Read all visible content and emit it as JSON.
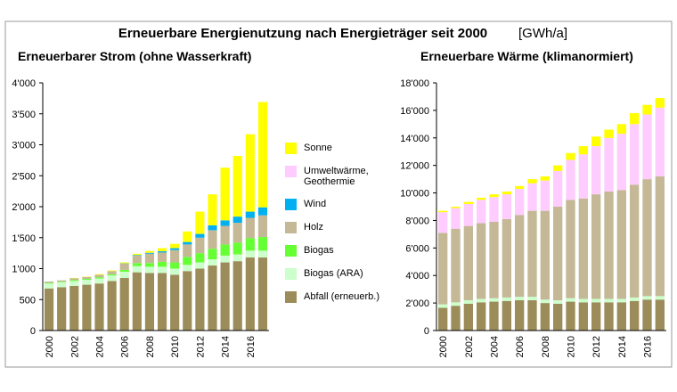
{
  "header": {
    "title": "Erneuerbare Energienutzung nach Energieträger seit 2000",
    "unit": "[GWh/a]"
  },
  "chart_data": [
    {
      "type": "stacked-bar",
      "title": "Erneuerbarer Strom (ohne Wasserkraft)",
      "categories": [
        "2000",
        null,
        "2002",
        null,
        "2004",
        null,
        "2006",
        null,
        "2008",
        null,
        "2010",
        null,
        "2012",
        null,
        "2014",
        null,
        "2016",
        null
      ],
      "ylim": [
        0,
        4000
      ],
      "yticks": [
        0,
        500,
        {
          "value": 1000,
          "label": "1'000"
        },
        {
          "value": 1500,
          "label": "1'500"
        },
        {
          "value": 2000,
          "label": "2'000"
        },
        {
          "value": 2500,
          "label": "2'500"
        },
        {
          "value": 3000,
          "label": "3'000"
        },
        {
          "value": 3500,
          "label": "3'500"
        },
        {
          "value": 4000,
          "label": "4'000"
        }
      ],
      "grid": false,
      "series": [
        {
          "name": "Abfall (erneuerb.)",
          "color": "#9c8c5a",
          "values": [
            680,
            700,
            720,
            740,
            760,
            800,
            850,
            940,
            930,
            930,
            900,
            960,
            1000,
            1050,
            1100,
            1120,
            1180,
            1180
          ]
        },
        {
          "name": "Biogas (ARA)",
          "color": "#ccffcc",
          "values": [
            80,
            80,
            80,
            80,
            80,
            90,
            100,
            100,
            100,
            100,
            100,
            100,
            100,
            100,
            110,
            110,
            110,
            110
          ]
        },
        {
          "name": "Biogas",
          "color": "#66ff33",
          "values": [
            10,
            10,
            15,
            15,
            20,
            20,
            30,
            50,
            60,
            80,
            100,
            130,
            150,
            170,
            180,
            190,
            200,
            220
          ]
        },
        {
          "name": "Holz",
          "color": "#c4b896",
          "values": [
            20,
            20,
            30,
            30,
            40,
            50,
            100,
            120,
            150,
            150,
            200,
            200,
            250,
            300,
            300,
            320,
            330,
            350
          ]
        },
        {
          "name": "Wind",
          "color": "#00b0f0",
          "values": [
            0,
            0,
            0,
            0,
            0,
            0,
            5,
            10,
            15,
            20,
            30,
            40,
            60,
            80,
            90,
            100,
            100,
            130
          ]
        },
        {
          "name": "Sonne",
          "color": "#ffff00",
          "values": [
            0,
            0,
            5,
            5,
            10,
            10,
            15,
            20,
            30,
            50,
            70,
            170,
            360,
            500,
            850,
            980,
            1250,
            1700
          ]
        }
      ]
    },
    {
      "type": "stacked-bar",
      "title": "Erneuerbare Wärme (klimanormiert)",
      "categories": [
        "2000",
        null,
        "2002",
        null,
        "2004",
        null,
        "2006",
        null,
        "2008",
        null,
        "2010",
        null,
        "2012",
        null,
        "2014",
        null,
        "2016",
        null
      ],
      "ylim": [
        0,
        18000
      ],
      "yticks": [
        0,
        {
          "value": 2000,
          "label": "2'000"
        },
        {
          "value": 4000,
          "label": "4'000"
        },
        {
          "value": 6000,
          "label": "6'000"
        },
        {
          "value": 8000,
          "label": "8'000"
        },
        {
          "value": 10000,
          "label": "10'000"
        },
        {
          "value": 12000,
          "label": "12'000"
        },
        {
          "value": 14000,
          "label": "14'000"
        },
        {
          "value": 16000,
          "label": "16'000"
        },
        {
          "value": 18000,
          "label": "18'000"
        }
      ],
      "grid": false,
      "series": [
        {
          "name": "Abfall (erneuerb.)",
          "color": "#9c8c5a",
          "values": [
            1650,
            1800,
            1950,
            2050,
            2100,
            2150,
            2200,
            2200,
            2000,
            1950,
            2100,
            2050,
            2050,
            2050,
            2050,
            2150,
            2250,
            2250
          ]
        },
        {
          "name": "Biogas (ARA)",
          "color": "#ccffcc",
          "values": [
            250,
            250,
            250,
            250,
            250,
            250,
            250,
            250,
            250,
            250,
            250,
            250,
            250,
            250,
            250,
            250,
            250,
            250
          ]
        },
        {
          "name": "Holz",
          "color": "#c4b896",
          "values": [
            5200,
            5350,
            5400,
            5500,
            5550,
            5700,
            5950,
            6250,
            6450,
            6800,
            7150,
            7300,
            7600,
            7800,
            7900,
            8200,
            8500,
            8700
          ]
        },
        {
          "name": "Umweltwärme, Geothermie",
          "color": "#ffccff",
          "values": [
            1500,
            1500,
            1600,
            1700,
            1800,
            1800,
            1900,
            2000,
            2200,
            2600,
            2900,
            3200,
            3500,
            3900,
            4100,
            4400,
            4700,
            5000
          ]
        },
        {
          "name": "Sonne",
          "color": "#ffff00",
          "values": [
            100,
            100,
            150,
            150,
            200,
            200,
            200,
            300,
            300,
            400,
            500,
            600,
            700,
            600,
            700,
            800,
            700,
            700
          ]
        }
      ]
    }
  ]
}
